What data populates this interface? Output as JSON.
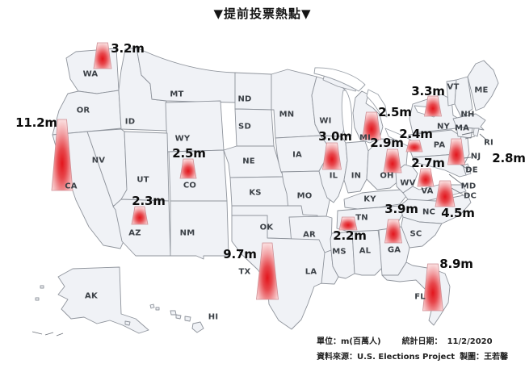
{
  "title": "▼提前投票熱點▼",
  "footer": {
    "unit_label": "單位：m(百萬人)",
    "date_label": "統計日期：",
    "date_value": "11/2/2020",
    "source_label": "資料來源：",
    "source_value": "U.S. Elections Project",
    "maker_label": "製圖：",
    "maker_value": "王若馨"
  },
  "colors": {
    "state_fill": "#f0f2f6",
    "state_border": "#8f949c",
    "cone_core_red": "#e3151c",
    "cone_edge_pink": "#fad9da",
    "label_text": "#3b4046"
  },
  "map": {
    "state_labels": [
      "WA",
      "OR",
      "CA",
      "NV",
      "ID",
      "MT",
      "WY",
      "UT",
      "CO",
      "AZ",
      "NM",
      "ND",
      "SD",
      "NE",
      "KS",
      "OK",
      "TX",
      "MN",
      "IA",
      "MO",
      "AR",
      "LA",
      "WI",
      "IL",
      "IN",
      "MI",
      "OH",
      "KY",
      "TN",
      "MS",
      "AL",
      "GA",
      "SC",
      "NC",
      "VA",
      "WV",
      "PA",
      "NY",
      "NJ",
      "DE",
      "MD",
      "DC",
      "VT",
      "NH",
      "MA",
      "RI",
      "ME",
      "FL",
      "AK",
      "HI"
    ],
    "markers": [
      {
        "state": "CA",
        "value": "11.2m",
        "million": 11.2
      },
      {
        "state": "WA",
        "value": "3.2m",
        "million": 3.2
      },
      {
        "state": "AZ",
        "value": "2.3m",
        "million": 2.3
      },
      {
        "state": "CO",
        "value": "2.5m",
        "million": 2.5
      },
      {
        "state": "TX",
        "value": "9.7m",
        "million": 9.7
      },
      {
        "state": "IL",
        "value": "3.0m",
        "million": 3.0
      },
      {
        "state": "MI",
        "value": "2.5m",
        "million": 2.5
      },
      {
        "state": "OH",
        "value": "2.9m",
        "million": 2.9
      },
      {
        "state": "TN",
        "value": "2.2m",
        "million": 2.2
      },
      {
        "state": "GA",
        "value": "3.9m",
        "million": 3.9
      },
      {
        "state": "NY",
        "value": "3.3m",
        "million": 3.3
      },
      {
        "state": "PA",
        "value": "2.4m",
        "million": 2.4
      },
      {
        "state": "NJ",
        "value": "2.8m",
        "million": 2.8
      },
      {
        "state": "VA",
        "value": "2.7m",
        "million": 2.7
      },
      {
        "state": "NC",
        "value": "4.5m",
        "million": 4.5
      },
      {
        "state": "FL",
        "value": "8.9m",
        "million": 8.9
      }
    ]
  }
}
